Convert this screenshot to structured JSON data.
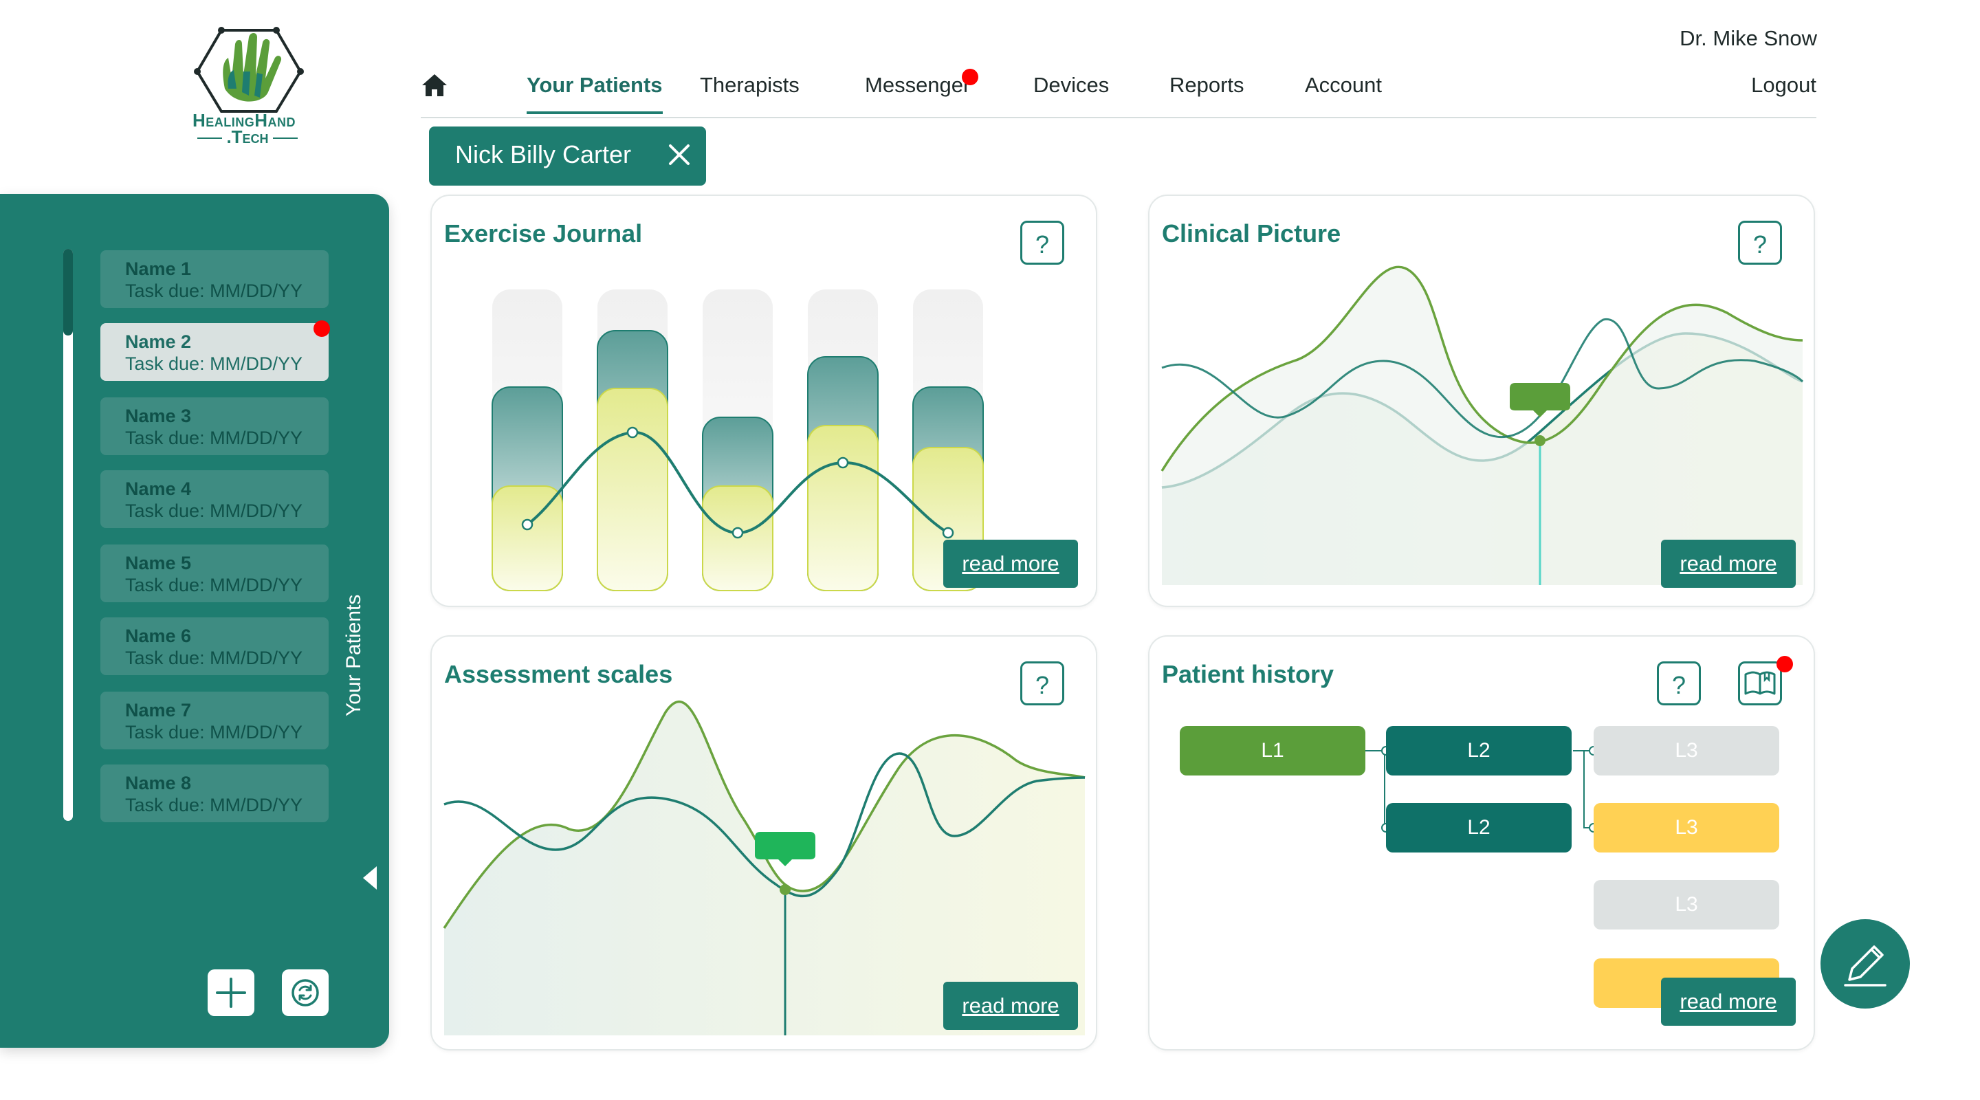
{
  "brand": {
    "line1": "HealingHand",
    "line2": ".Tech"
  },
  "header": {
    "doctor": "Dr. Mike Snow",
    "logout": "Logout"
  },
  "nav": {
    "items": [
      "Your Patients",
      "Therapists",
      "Messenger",
      "Devices",
      "Reports",
      "Account"
    ],
    "active": "Your Patients",
    "messenger_has_notification": true
  },
  "patient_chip": {
    "name": "Nick Billy Carter"
  },
  "sidebar": {
    "label": "Your Patients",
    "selected_index": 1,
    "patients": [
      {
        "name": "Name 1",
        "due": "Task due: MM/DD/YY"
      },
      {
        "name": "Name 2",
        "due": "Task due: MM/DD/YY",
        "notification": true
      },
      {
        "name": "Name 3",
        "due": "Task due: MM/DD/YY"
      },
      {
        "name": "Name 4",
        "due": "Task due: MM/DD/YY"
      },
      {
        "name": "Name 5",
        "due": "Task due: MM/DD/YY"
      },
      {
        "name": "Name 6",
        "due": "Task due: MM/DD/YY"
      },
      {
        "name": "Name 7",
        "due": "Task due: MM/DD/YY"
      },
      {
        "name": "Name 8",
        "due": "Task due: MM/DD/YY"
      }
    ]
  },
  "cards": {
    "exercise_journal": {
      "title": "Exercise Journal",
      "help": "?",
      "read_more": "read more"
    },
    "clinical_picture": {
      "title": "Clinical Picture",
      "help": "?",
      "read_more": "read more"
    },
    "assessment_scales": {
      "title": "Assessment scales",
      "help": "?",
      "read_more": "read more"
    },
    "patient_history": {
      "title": "Patient history",
      "help": "?",
      "read_more": "read more",
      "journal_has_notification": true,
      "nodes": {
        "l1": "L1",
        "l2": [
          "L2",
          "L2"
        ],
        "l3": [
          "L3",
          "L3",
          "L3"
        ]
      }
    }
  },
  "colors": {
    "primary": "#1e7d70",
    "primary_dark": "#0f7168",
    "green": "#5b9e3a",
    "yellow": "#ffd154",
    "lime": "#e8ed9e",
    "notification": "#ff0000"
  }
}
